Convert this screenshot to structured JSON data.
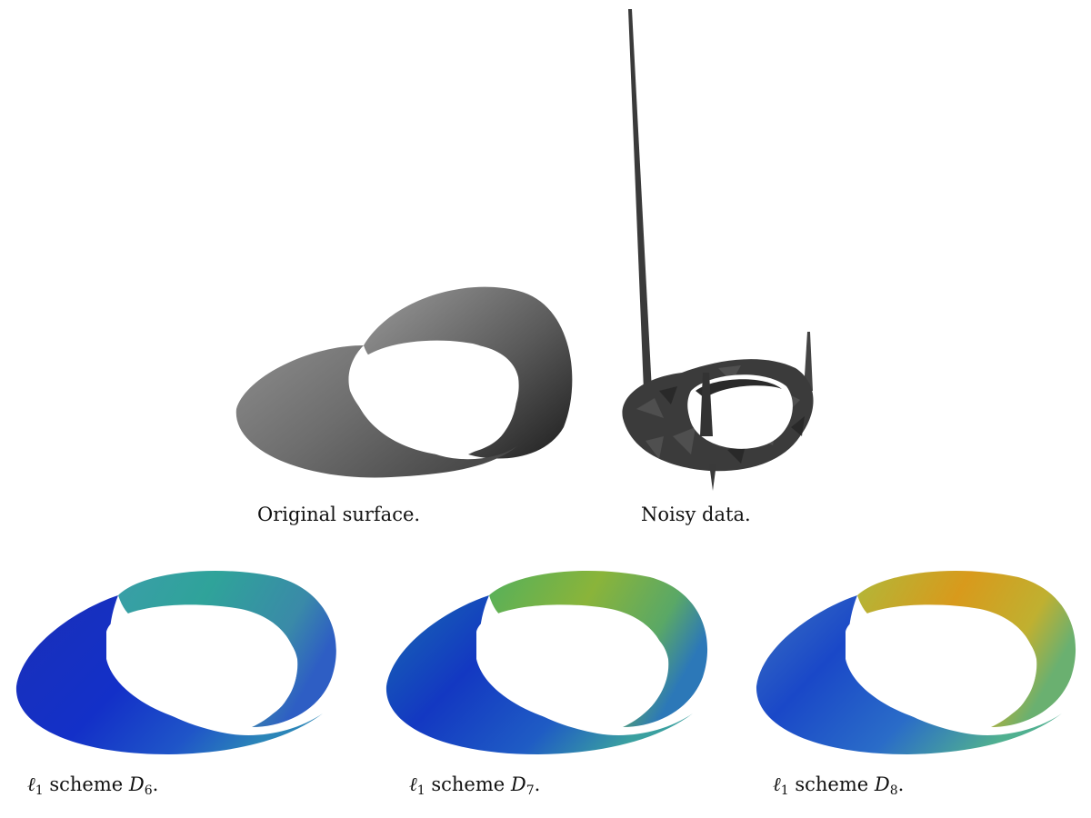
{
  "figure": {
    "panels": [
      {
        "id": "original",
        "caption": "Original surface."
      },
      {
        "id": "noisy",
        "caption": "Noisy data."
      },
      {
        "id": "d6",
        "caption_prefix": "ℓ",
        "caption_sub1": "1",
        "caption_middle": " scheme ",
        "caption_var": "D",
        "caption_sub2": "6",
        "caption_suffix": "."
      },
      {
        "id": "d7",
        "caption_prefix": "ℓ",
        "caption_sub1": "1",
        "caption_middle": " scheme ",
        "caption_var": "D",
        "caption_sub2": "7",
        "caption_suffix": "."
      },
      {
        "id": "d8",
        "caption_prefix": "ℓ",
        "caption_sub1": "1",
        "caption_middle": " scheme ",
        "caption_var": "D",
        "caption_sub2": "8",
        "caption_suffix": "."
      }
    ]
  }
}
